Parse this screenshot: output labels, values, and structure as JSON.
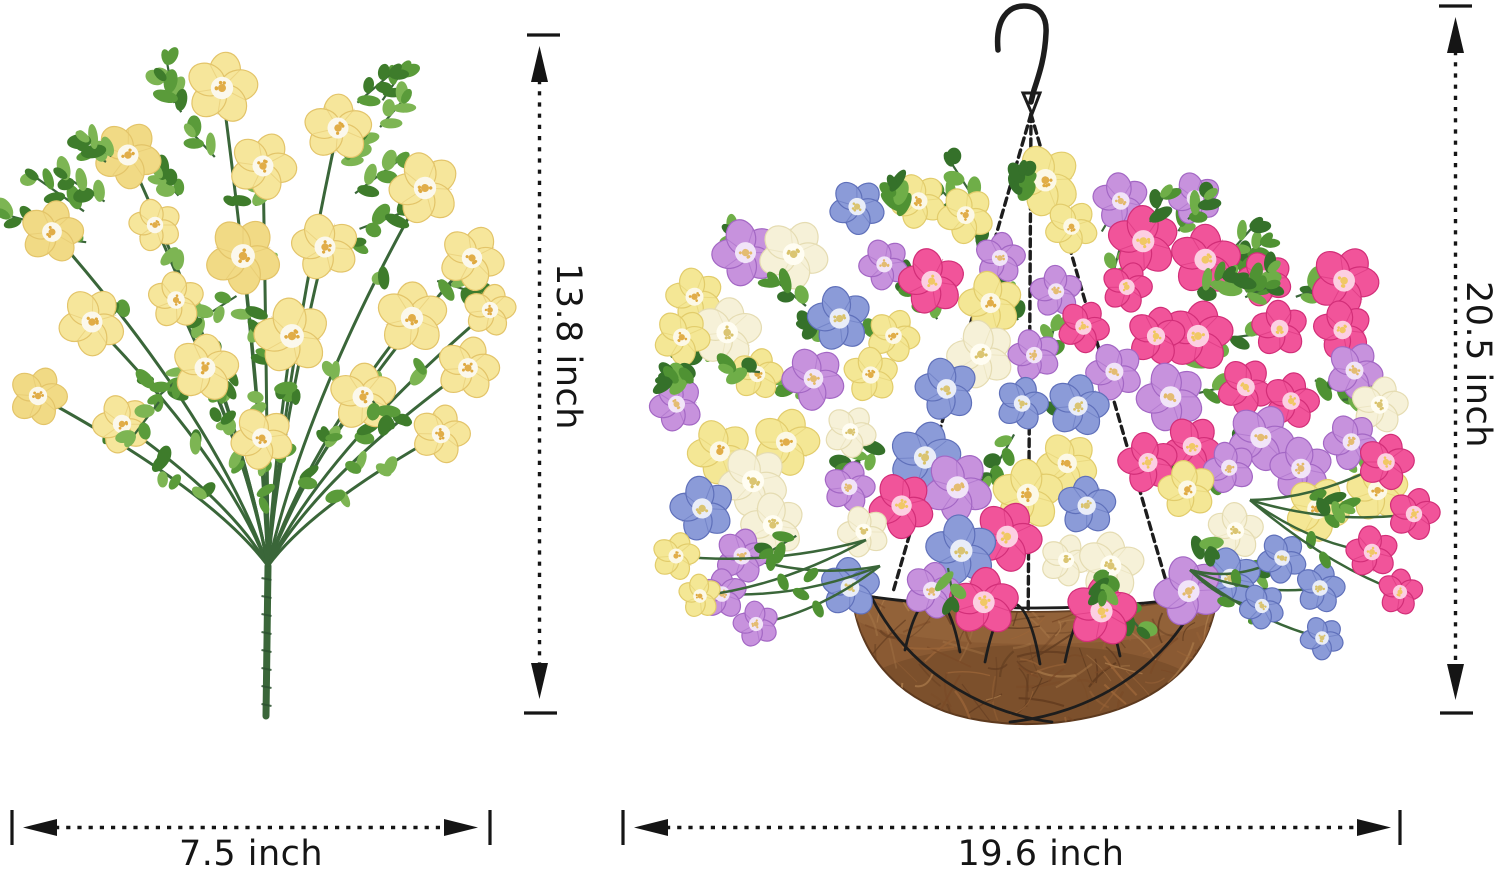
{
  "image": {
    "background": "#ffffff",
    "annotation_color": "#151515"
  },
  "bush": {
    "height_label": "13.8 inch",
    "width_label": "7.5 inch",
    "palette": {
      "petal": "#f6e69b",
      "petal_alt": "#f1da85",
      "edge": "#e3c469",
      "center": "#fbf8ec",
      "stamen": "#dfa93f",
      "leaf_light": "#7db553",
      "leaf": "#5a9b3a",
      "leaf_dark": "#3e7c2b",
      "stem": "#3a6639",
      "stem_dark": "#2d5230"
    }
  },
  "basket": {
    "height_label": "20.5 inch",
    "width_label": "19.6 inch",
    "metal_color": "#1d1d1d",
    "liner": {
      "base": "#8a5a33",
      "dark": "#633c20",
      "light": "#aa7a4a",
      "shadow": "#5e3a1f"
    },
    "flower_palettes": [
      {
        "name": "blue",
        "petal": "#8b9bd8",
        "edge": "#5f70ba",
        "center": "#e9edf8",
        "stamen": "#d9c26a"
      },
      {
        "name": "lavender",
        "petal": "#c792dd",
        "edge": "#a367c4",
        "center": "#f1e4f8",
        "stamen": "#e3b96a"
      },
      {
        "name": "magenta",
        "petal": "#f1549a",
        "edge": "#d22e78",
        "center": "#fccfe2",
        "stamen": "#f0c75e"
      },
      {
        "name": "yellow",
        "petal": "#f4e795",
        "edge": "#e2cc6b",
        "center": "#fcf8e6",
        "stamen": "#dfa93f"
      },
      {
        "name": "cream",
        "petal": "#f6f1d8",
        "edge": "#e5dcb2",
        "center": "#fffdf2",
        "stamen": "#d9c26a"
      }
    ],
    "foliage": {
      "leaf_light": "#6fae48",
      "leaf": "#4f9233",
      "leaf_dark": "#35712a",
      "stem": "#3a6639"
    }
  }
}
